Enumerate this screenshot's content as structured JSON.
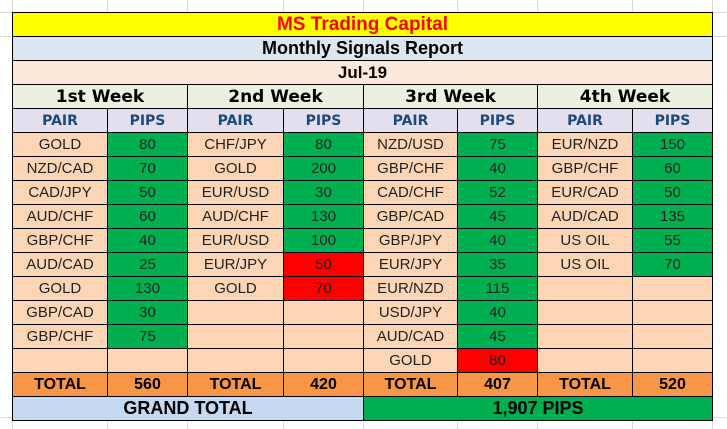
{
  "report": {
    "title": "MS Trading Capital",
    "subtitle": "Monthly Signals Report",
    "month": "Jul-19",
    "column_headers": {
      "pair": "PAIR",
      "pips": "PIPS"
    },
    "total_label": "TOTAL",
    "grand_total_label": "GRAND TOTAL",
    "grand_total_value": "1,907 PIPS",
    "colors": {
      "win": "#00b050",
      "loss": "#ff0000",
      "title": "#ff0000",
      "title_bg": "#ffff00"
    },
    "weeks": [
      {
        "label": "1st Week",
        "total": "560",
        "rows": [
          {
            "pair": "GOLD",
            "pips": "80",
            "status": "win"
          },
          {
            "pair": "NZD/CAD",
            "pips": "70",
            "status": "win"
          },
          {
            "pair": "CAD/JPY",
            "pips": "50",
            "status": "win"
          },
          {
            "pair": "AUD/CHF",
            "pips": "60",
            "status": "win"
          },
          {
            "pair": "GBP/CHF",
            "pips": "40",
            "status": "win"
          },
          {
            "pair": "AUD/CAD",
            "pips": "25",
            "status": "win"
          },
          {
            "pair": "GOLD",
            "pips": "130",
            "status": "win"
          },
          {
            "pair": "GBP/CAD",
            "pips": "30",
            "status": "win"
          },
          {
            "pair": "GBP/CHF",
            "pips": "75",
            "status": "win"
          },
          {
            "pair": "",
            "pips": "",
            "status": "empty"
          }
        ]
      },
      {
        "label": "2nd Week",
        "total": "420",
        "rows": [
          {
            "pair": "CHF/JPY",
            "pips": "80",
            "status": "win"
          },
          {
            "pair": "GOLD",
            "pips": "200",
            "status": "win"
          },
          {
            "pair": "EUR/USD",
            "pips": "30",
            "status": "win"
          },
          {
            "pair": "AUD/CHF",
            "pips": "130",
            "status": "win"
          },
          {
            "pair": "EUR/USD",
            "pips": "100",
            "status": "win"
          },
          {
            "pair": "EUR/JPY",
            "pips": "50",
            "status": "loss"
          },
          {
            "pair": "GOLD",
            "pips": "70",
            "status": "loss"
          },
          {
            "pair": "",
            "pips": "",
            "status": "empty"
          },
          {
            "pair": "",
            "pips": "",
            "status": "empty"
          },
          {
            "pair": "",
            "pips": "",
            "status": "empty"
          }
        ]
      },
      {
        "label": "3rd Week",
        "total": "407",
        "rows": [
          {
            "pair": "NZD/USD",
            "pips": "75",
            "status": "win"
          },
          {
            "pair": "GBP/CHF",
            "pips": "40",
            "status": "win"
          },
          {
            "pair": "CAD/CHF",
            "pips": "52",
            "status": "win"
          },
          {
            "pair": "GBP/CAD",
            "pips": "45",
            "status": "win"
          },
          {
            "pair": "GBP/JPY",
            "pips": "40",
            "status": "win"
          },
          {
            "pair": "EUR/JPY",
            "pips": "35",
            "status": "win"
          },
          {
            "pair": "EUR/NZD",
            "pips": "115",
            "status": "win"
          },
          {
            "pair": "USD/JPY",
            "pips": "40",
            "status": "win"
          },
          {
            "pair": "AUD/CAD",
            "pips": "45",
            "status": "win"
          },
          {
            "pair": "GOLD",
            "pips": "80",
            "status": "loss"
          }
        ]
      },
      {
        "label": "4th Week",
        "total": "520",
        "rows": [
          {
            "pair": "EUR/NZD",
            "pips": "150",
            "status": "win"
          },
          {
            "pair": "GBP/CHF",
            "pips": "60",
            "status": "win"
          },
          {
            "pair": "EUR/CAD",
            "pips": "50",
            "status": "win"
          },
          {
            "pair": "AUD/CAD",
            "pips": "135",
            "status": "win"
          },
          {
            "pair": "US OIL",
            "pips": "55",
            "status": "win"
          },
          {
            "pair": "US OIL",
            "pips": "70",
            "status": "win"
          },
          {
            "pair": "",
            "pips": "",
            "status": "empty"
          },
          {
            "pair": "",
            "pips": "",
            "status": "empty"
          },
          {
            "pair": "",
            "pips": "",
            "status": "empty"
          },
          {
            "pair": "",
            "pips": "",
            "status": "empty"
          }
        ]
      }
    ]
  }
}
